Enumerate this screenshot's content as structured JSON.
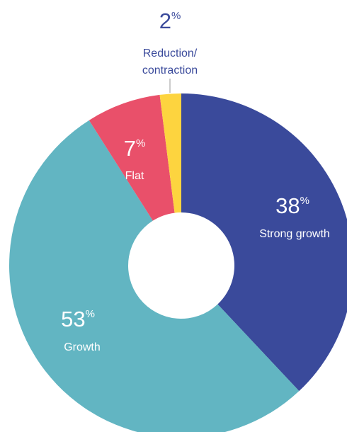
{
  "chart_data": {
    "type": "donut",
    "categories": [
      [
        "Strong growth"
      ],
      [
        "Growth"
      ],
      [
        "Flat"
      ],
      [
        "Reduction/",
        "contraction"
      ]
    ],
    "values": [
      38,
      53,
      7,
      2
    ],
    "unit": "%",
    "colors": [
      "#3a4a9b",
      "#62b5c2",
      "#e9506a",
      "#fdd43f"
    ]
  }
}
